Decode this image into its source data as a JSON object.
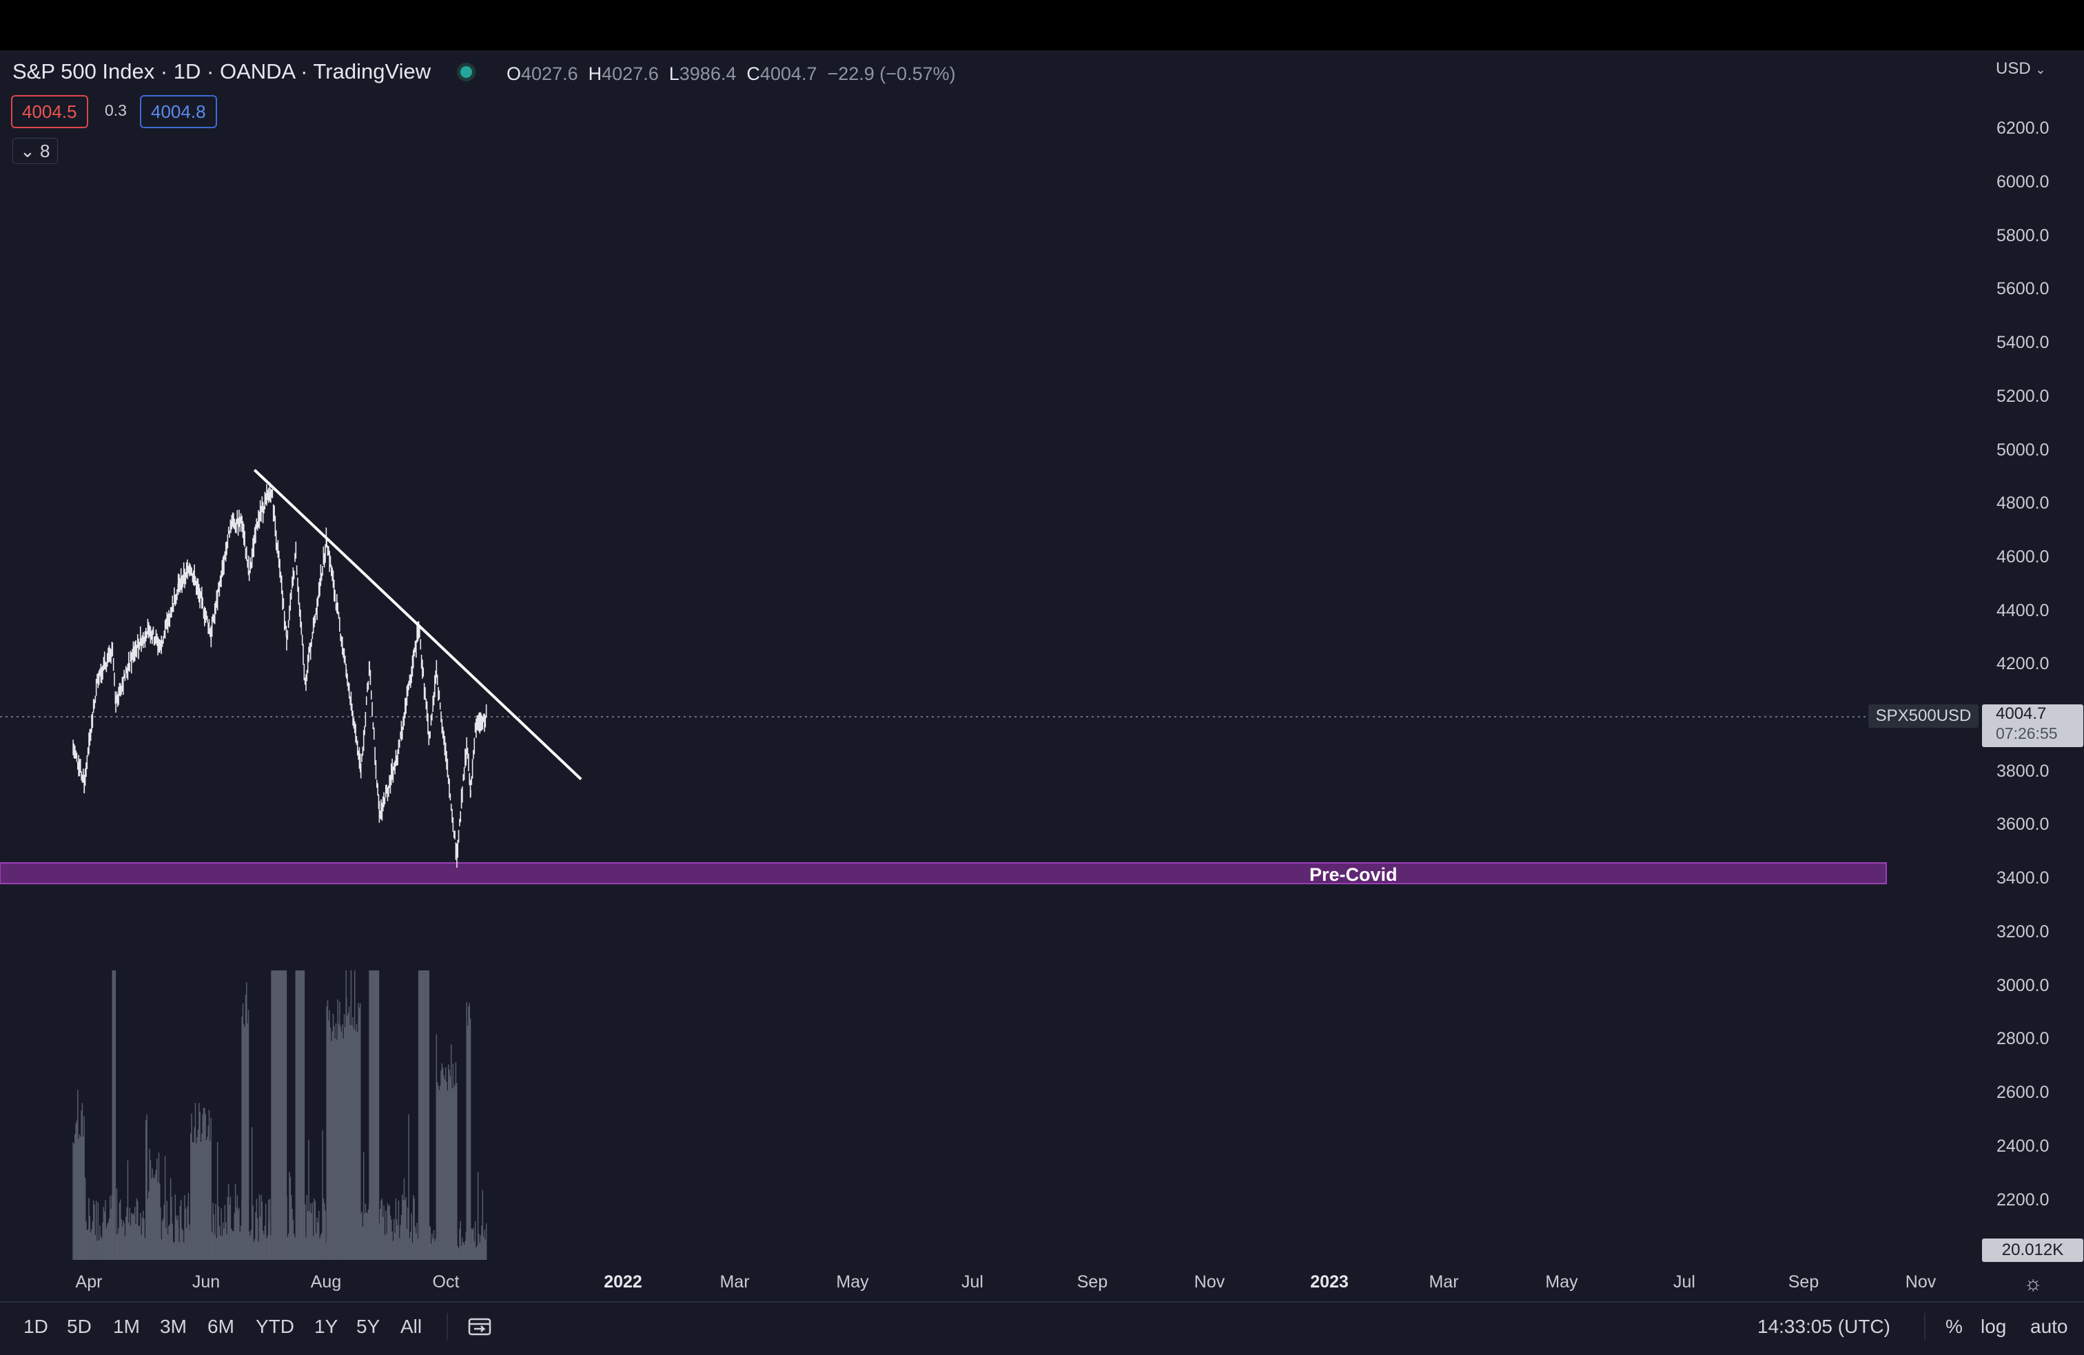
{
  "header": {
    "title": "S&P 500 Index · 1D · OANDA · TradingView",
    "ohlc": {
      "o_label": "O",
      "o": "4027.6",
      "h_label": "H",
      "h": "4027.6",
      "l_label": "L",
      "l": "3986.4",
      "c_label": "C",
      "c": "4004.7",
      "change": "−22.9 (−0.57%)"
    },
    "bid": "4004.5",
    "spread": "0.3",
    "ask": "4004.8",
    "indicator_toggle": "8",
    "currency": "USD"
  },
  "price_scale": [
    "6200.0",
    "6000.0",
    "5800.0",
    "5600.0",
    "5400.0",
    "5200.0",
    "5000.0",
    "4800.0",
    "4600.0",
    "4400.0",
    "4200.0",
    "3800.0",
    "3600.0",
    "3400.0",
    "3200.0",
    "3000.0",
    "2800.0",
    "2600.0",
    "2400.0",
    "2200.0"
  ],
  "last_price": {
    "symbol": "SPX500USD",
    "price": "4004.7",
    "countdown": "07:26:55"
  },
  "volume_label": "20.012K",
  "annotation": {
    "zone_label": "Pre-Covid"
  },
  "time_axis": [
    "Apr",
    "Jun",
    "Aug",
    "Oct",
    "2022",
    "Mar",
    "May",
    "Jul",
    "Sep",
    "Nov",
    "2023",
    "Mar",
    "May",
    "Jul",
    "Sep",
    "Nov"
  ],
  "toolbar": {
    "ranges": [
      "1D",
      "5D",
      "1M",
      "3M",
      "6M",
      "YTD",
      "1Y",
      "5Y",
      "All"
    ],
    "clock": "14:33:05 (UTC)",
    "percent": "%",
    "log": "log",
    "auto": "auto"
  },
  "colors": {
    "background": "#171a26",
    "zone": "#7b2d8e",
    "bid": "#ef5350",
    "ask": "#5b8af0",
    "candles": "#e6e8ee"
  },
  "chart_data": {
    "type": "bar",
    "ylim": [
      3300,
      6300
    ],
    "trendline": {
      "from": {
        "date": "2021-12-09",
        "price": 4890
      },
      "to": {
        "date": "2023-04-20",
        "price": 3775
      }
    },
    "zone": {
      "label": "Pre-Covid",
      "from_price": 3380,
      "to_price": 3460
    },
    "last_price": 4004.7,
    "price_path": [
      {
        "date": "2021-03-08",
        "price": 3890
      },
      {
        "date": "2021-03-25",
        "price": 3760
      },
      {
        "date": "2021-04-15",
        "price": 4150
      },
      {
        "date": "2021-05-07",
        "price": 4230
      },
      {
        "date": "2021-05-12",
        "price": 4060
      },
      {
        "date": "2021-06-10",
        "price": 4240
      },
      {
        "date": "2021-07-01",
        "price": 4320
      },
      {
        "date": "2021-07-19",
        "price": 4250
      },
      {
        "date": "2021-08-15",
        "price": 4470
      },
      {
        "date": "2021-09-03",
        "price": 4540
      },
      {
        "date": "2021-10-04",
        "price": 4300
      },
      {
        "date": "2021-11-03",
        "price": 4700
      },
      {
        "date": "2021-11-20",
        "price": 4700
      },
      {
        "date": "2021-12-01",
        "price": 4510
      },
      {
        "date": "2021-12-15",
        "price": 4720
      },
      {
        "date": "2021-12-31",
        "price": 4800
      },
      {
        "date": "2022-01-04",
        "price": 4820
      },
      {
        "date": "2022-01-27",
        "price": 4280
      },
      {
        "date": "2022-02-10",
        "price": 4590
      },
      {
        "date": "2022-02-24",
        "price": 4120
      },
      {
        "date": "2022-03-29",
        "price": 4640
      },
      {
        "date": "2022-04-28",
        "price": 4160
      },
      {
        "date": "2022-05-20",
        "price": 3810
      },
      {
        "date": "2022-06-02",
        "price": 4180
      },
      {
        "date": "2022-06-17",
        "price": 3640
      },
      {
        "date": "2022-07-15",
        "price": 3860
      },
      {
        "date": "2022-08-16",
        "price": 4320
      },
      {
        "date": "2022-09-01",
        "price": 3920
      },
      {
        "date": "2022-09-12",
        "price": 4160
      },
      {
        "date": "2022-10-13",
        "price": 3500
      },
      {
        "date": "2022-10-28",
        "price": 3900
      },
      {
        "date": "2022-11-03",
        "price": 3720
      },
      {
        "date": "2022-11-10",
        "price": 3960
      },
      {
        "date": "2022-11-28",
        "price": 4004.7
      }
    ]
  }
}
